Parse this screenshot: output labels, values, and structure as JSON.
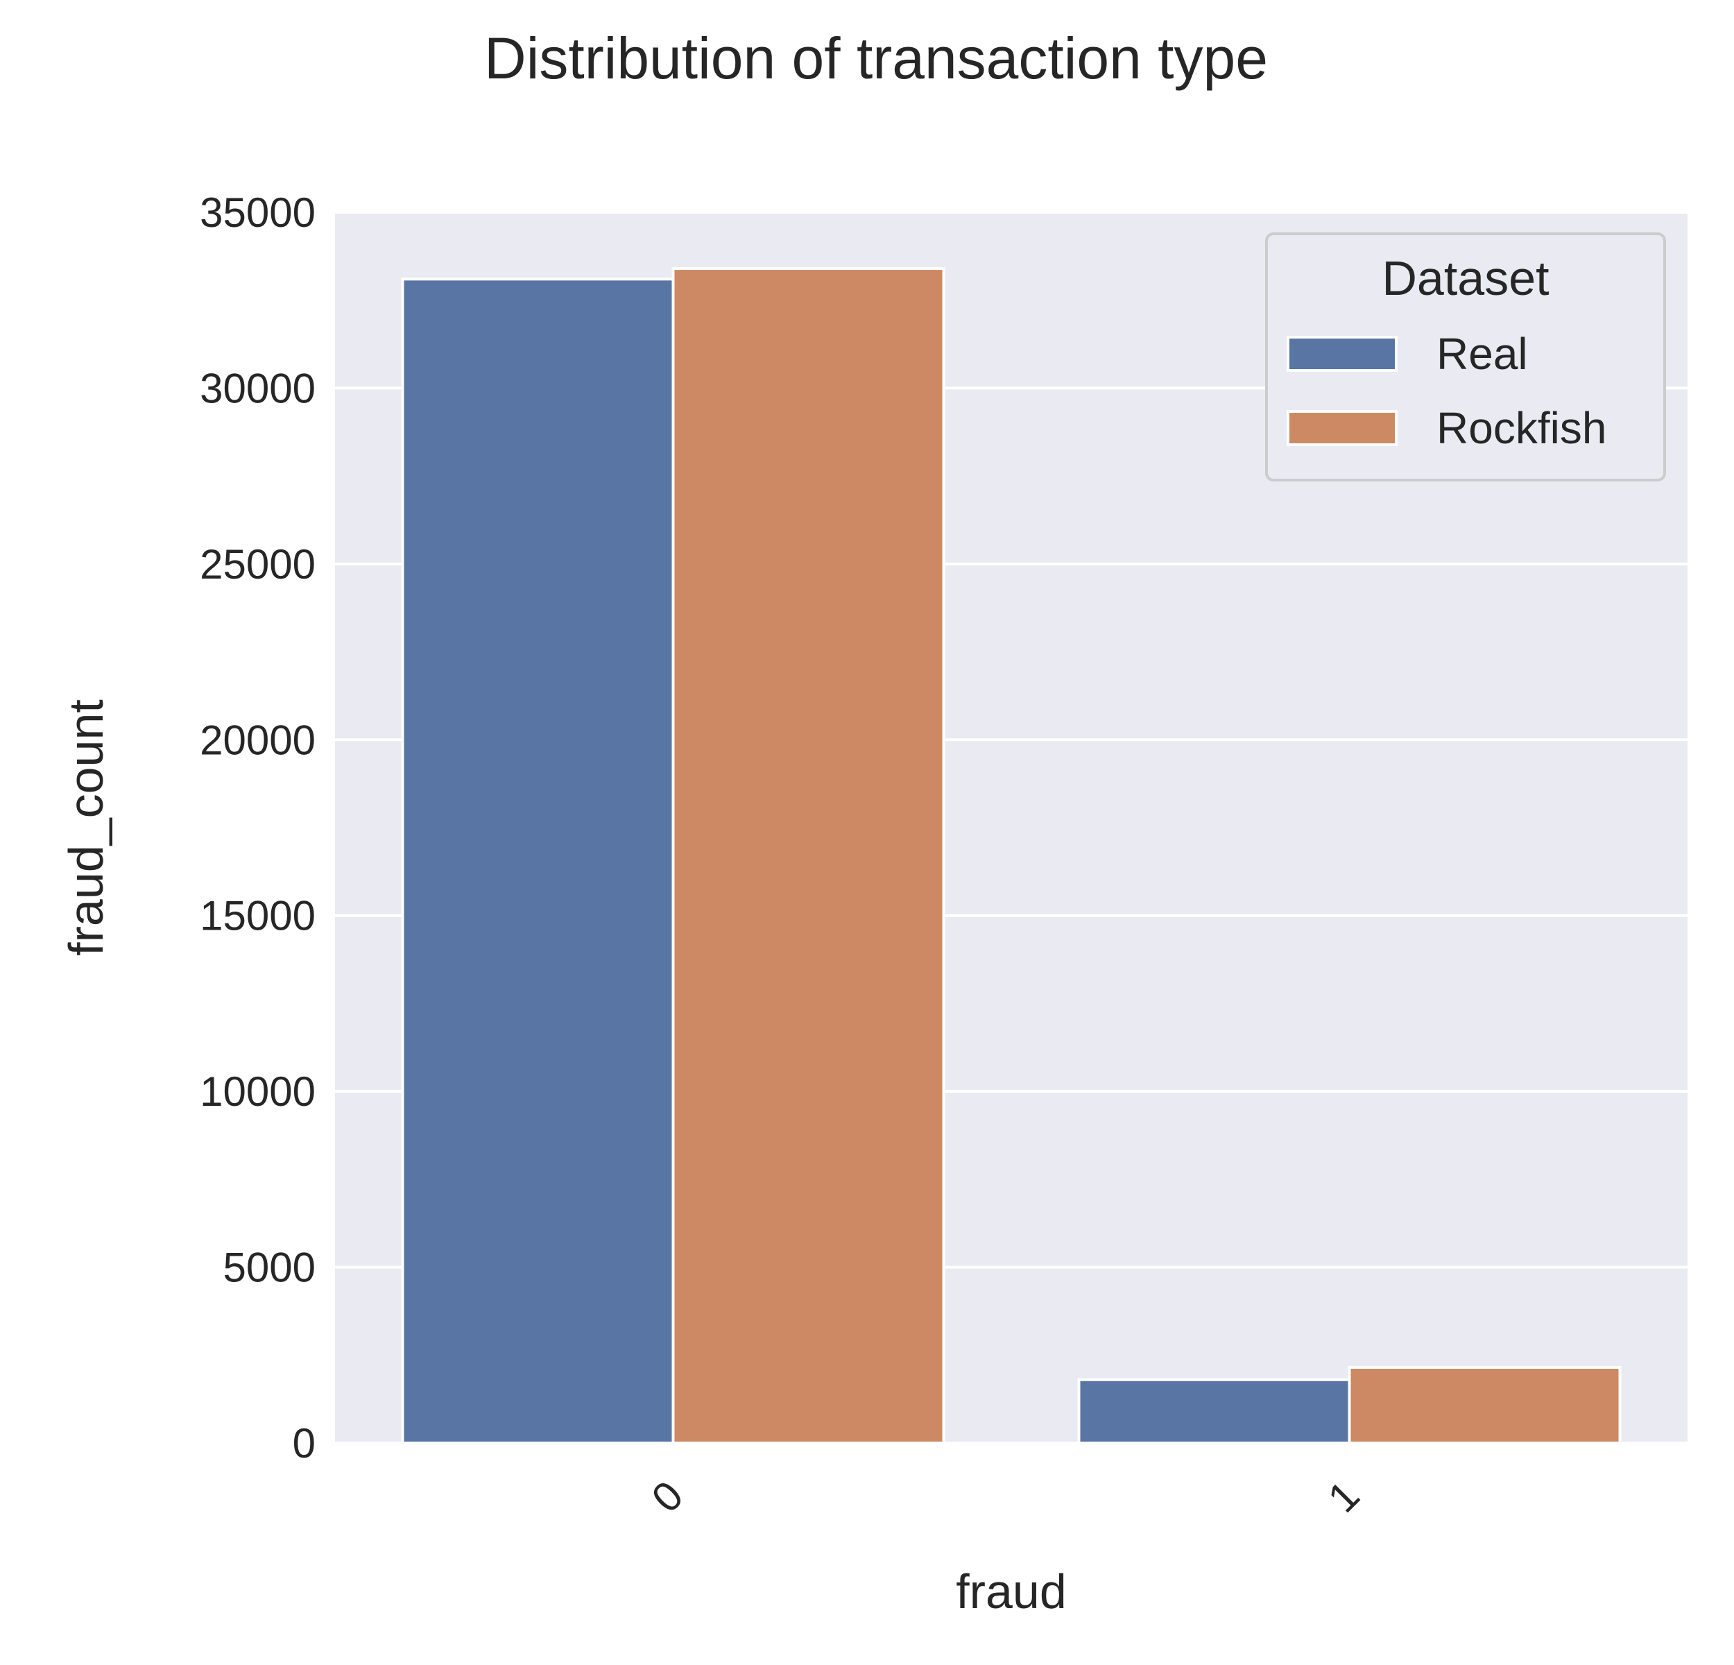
{
  "chart_data": {
    "type": "bar",
    "title": "Distribution of transaction type",
    "xlabel": "fraud",
    "ylabel": "fraud_count",
    "categories": [
      "0",
      "1"
    ],
    "series": [
      {
        "name": "Real",
        "color": "#5975a4",
        "values": [
          33100,
          1800
        ]
      },
      {
        "name": "Rockfish",
        "color": "#cc8963",
        "values": [
          33400,
          2150
        ]
      }
    ],
    "ylim": [
      0,
      35000
    ],
    "yticks": [
      0,
      5000,
      10000,
      15000,
      20000,
      25000,
      30000,
      35000
    ],
    "ytick_labels": [
      "0",
      "5000",
      "10000",
      "15000",
      "20000",
      "25000",
      "30000",
      "35000"
    ],
    "xtick_rotation": "45°",
    "grid": true,
    "legend": {
      "title": "Dataset",
      "placement": "top-right"
    },
    "background": "#eaeaf2"
  }
}
